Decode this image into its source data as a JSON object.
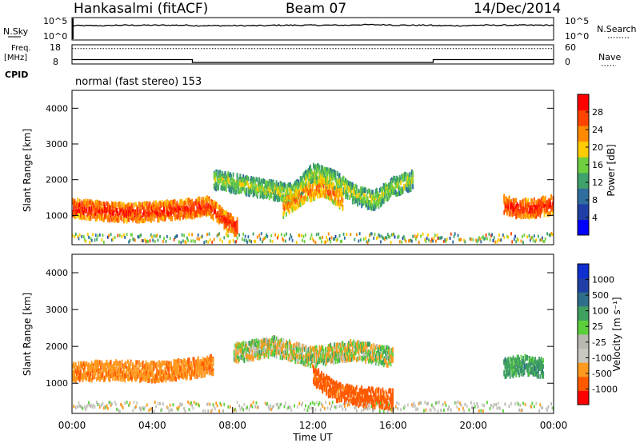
{
  "header": {
    "station": "Hankasalmi (fitACF)",
    "beam": "Beam 07",
    "date": "14/Dec/2014"
  },
  "colors": {
    "power": [
      "#0000ff",
      "#1f3fa6",
      "#2f6e9e",
      "#3fa26a",
      "#6fcf3f",
      "#ffcc00",
      "#ff8a00",
      "#ff4400",
      "#ff0000"
    ],
    "velocity": [
      "#ff0000",
      "#ff5a00",
      "#ff9a20",
      "#c8c8c0",
      "#b8b8b0",
      "#5ccf3c",
      "#3fa060",
      "#2f6e8a",
      "#1f3fa6",
      "#0f2fd0"
    ]
  },
  "chart_data": [
    {
      "type": "line",
      "name": "N.Sky / N.Search panel",
      "labels": {
        "left": "N.Sky",
        "right": "N.Search"
      },
      "left_ticks": [
        "10^5",
        "10^0"
      ],
      "right_ticks": [
        "10^5",
        "10^0"
      ],
      "x": [
        "00:00",
        "02:00",
        "04:00",
        "06:00",
        "08:00",
        "10:00",
        "12:00",
        "14:00",
        "16:00",
        "18:00",
        "20:00",
        "22:00",
        "00:00"
      ],
      "series": [
        {
          "name": "N.Sky",
          "values": [
            3.2,
            3.3,
            3.3,
            3.2,
            3.2,
            3.3,
            3.3,
            3.4,
            3.3,
            3.2,
            3.3,
            3.3,
            3.3
          ]
        }
      ]
    },
    {
      "type": "line",
      "name": "Frequency / Nave panel",
      "labels": {
        "left_top": "Freq.",
        "left_unit": "[MHz]",
        "bottom_left": "CPID",
        "right": "Nave"
      },
      "left_ticks": [
        "18",
        "8"
      ],
      "right_ticks": [
        "60",
        "0"
      ],
      "x": [
        "00:00",
        "06:00",
        "06:00",
        "18:00",
        "18:00",
        "24:00"
      ],
      "series": [
        {
          "name": "Freq",
          "values": [
            10.3,
            10.3,
            8.8,
            8.8,
            10.3,
            10.3
          ]
        },
        {
          "name": "Nave",
          "values": [
            48,
            48,
            48,
            48,
            48,
            48
          ]
        }
      ]
    },
    {
      "type": "heatmap",
      "cpid_text": "normal (fast stereo) 153",
      "ylabel": "Slant Range [km]",
      "yticks": [
        1000,
        2000,
        3000,
        4000
      ],
      "ylim": [
        180,
        4500
      ],
      "xlim": [
        0,
        24
      ],
      "colorbar": {
        "label": "Power [dB]",
        "ticks": [
          "4",
          "8",
          "12",
          "16",
          "20",
          "24",
          "28"
        ],
        "range": [
          0,
          30
        ]
      },
      "features": [
        {
          "t": [
            0,
            1,
            2,
            3,
            4,
            5,
            6,
            6.8,
            7.5,
            8.2
          ],
          "range_km": [
            1200,
            1150,
            1100,
            1080,
            1100,
            1150,
            1200,
            1250,
            900,
            650
          ],
          "power_db": 30
        },
        {
          "t": [
            7,
            9,
            11,
            12,
            13,
            14,
            15,
            16,
            17
          ],
          "range_km": [
            2000,
            1800,
            1600,
            2200,
            2000,
            1600,
            1400,
            1800,
            2000
          ],
          "power_db": 20
        },
        {
          "t": [
            10.5,
            11.5,
            12.5,
            13.5
          ],
          "range_km": [
            1200,
            1600,
            1800,
            1400
          ],
          "power_db": 26
        },
        {
          "t": [
            21.5,
            22,
            23,
            24
          ],
          "range_km": [
            1300,
            1200,
            1200,
            1300
          ],
          "power_db": 30
        }
      ]
    },
    {
      "type": "heatmap",
      "ylabel": "Slant Range [km]",
      "xlabel": "Time UT",
      "xticks": [
        "00:00",
        "04:00",
        "08:00",
        "12:00",
        "16:00",
        "20:00",
        "00:00"
      ],
      "yticks": [
        1000,
        2000,
        3000,
        4000
      ],
      "ylim": [
        180,
        4500
      ],
      "xlim": [
        0,
        24
      ],
      "colorbar": {
        "label": "Velocity [m s⁻¹]",
        "ticks": [
          "-1000",
          "-500",
          "-100",
          "-25",
          "25",
          "100",
          "500",
          "1000"
        ],
        "range": [
          -1200,
          1200
        ]
      },
      "features": [
        {
          "t": [
            0,
            2,
            4,
            6,
            7
          ],
          "range_km": [
            1300,
            1350,
            1300,
            1400,
            1500
          ],
          "velocity": -150
        },
        {
          "t": [
            8,
            10,
            12,
            14,
            16
          ],
          "range_km": [
            1800,
            2000,
            1700,
            1900,
            1700
          ],
          "velocity": 15
        },
        {
          "t": [
            12,
            13,
            14,
            15,
            16
          ],
          "range_km": [
            1200,
            800,
            650,
            600,
            550
          ],
          "velocity": -300
        },
        {
          "t": [
            21.5,
            22.5,
            23.5
          ],
          "range_km": [
            1400,
            1500,
            1400
          ],
          "velocity": 200
        }
      ]
    }
  ]
}
